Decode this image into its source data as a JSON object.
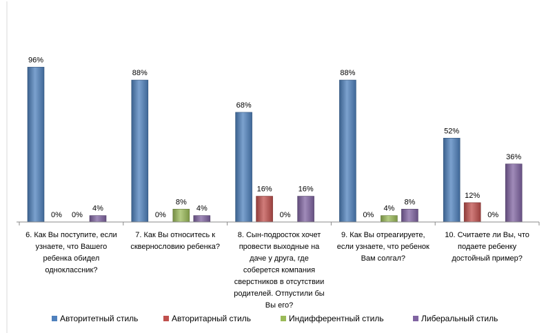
{
  "chart_data": {
    "type": "bar",
    "value_suffix": "%",
    "categories": [
      [
        "6. Как Вы поступите, если",
        "узнаете, что Вашего",
        "ребенка обидел",
        "одноклассник?"
      ],
      [
        "7. Как Вы относитесь к",
        "сквернословию ребенка?"
      ],
      [
        "8. Сын-подросток хочет",
        "провести выходные на",
        "даче у друга, где",
        "соберется компания",
        "сверстников в отсутствии",
        "родителей. Отпустили бы",
        "Вы его?"
      ],
      [
        "9. Как Вы отреагируете,",
        "если узнаете, что ребенок",
        "Вам солгал?"
      ],
      [
        "10. Считаете ли Вы, что",
        "подаете ребенку",
        "достойный пример?"
      ]
    ],
    "series": [
      {
        "name": "Авторитетный стиль",
        "color": "#4F81BD",
        "values": [
          96,
          88,
          68,
          88,
          52
        ]
      },
      {
        "name": "Авторитарный стиль",
        "color": "#C0504D",
        "values": [
          0,
          0,
          16,
          0,
          12
        ]
      },
      {
        "name": "Индифферентный стиль",
        "color": "#9BBB59",
        "values": [
          0,
          8,
          0,
          4,
          0
        ]
      },
      {
        "name": "Либеральный стиль",
        "color": "#8064A2",
        "values": [
          4,
          4,
          16,
          8,
          36
        ]
      }
    ],
    "ylim": [
      0,
      100
    ],
    "grid": false,
    "legend_position": "bottom"
  }
}
